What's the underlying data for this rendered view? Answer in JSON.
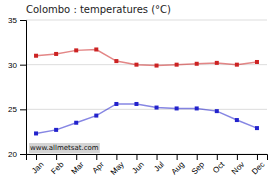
{
  "chart_data": {
    "type": "line",
    "title": "Colombo : temperatures (°C)",
    "categories": [
      "Jan",
      "Feb",
      "Mar",
      "Apr",
      "May",
      "Jun",
      "Jul",
      "Aug",
      "Sep",
      "Oct",
      "Nov",
      "Dec"
    ],
    "series": [
      {
        "color": "#cc2222",
        "marker": "square",
        "values": [
          31.0,
          31.2,
          31.6,
          31.7,
          30.4,
          30.0,
          29.9,
          30.0,
          30.1,
          30.2,
          30.0,
          30.3
        ]
      },
      {
        "color": "#2222cc",
        "marker": "square",
        "values": [
          22.3,
          22.7,
          23.5,
          24.3,
          25.6,
          25.6,
          25.2,
          25.1,
          25.1,
          24.8,
          23.8,
          22.9
        ]
      }
    ],
    "ylim": [
      20,
      35
    ],
    "yticks": [
      20,
      25,
      30,
      35
    ],
    "grid": true,
    "annotations": [
      "www.allmetsat.com"
    ]
  }
}
